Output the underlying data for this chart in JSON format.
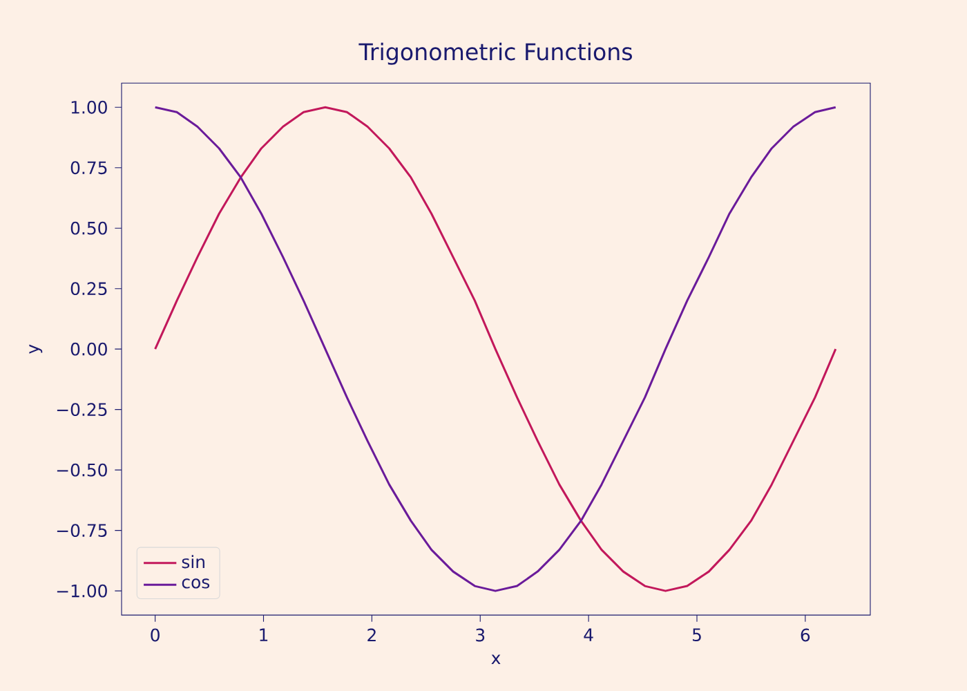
{
  "chart_data": {
    "type": "line",
    "title": "Trigonometric Functions",
    "xlabel": "x",
    "ylabel": "y",
    "x": [
      0,
      0.2,
      0.39,
      0.59,
      0.79,
      0.98,
      1.18,
      1.37,
      1.57,
      1.77,
      1.96,
      2.16,
      2.36,
      2.55,
      2.75,
      2.95,
      3.14,
      3.34,
      3.53,
      3.73,
      3.93,
      4.12,
      4.32,
      4.52,
      4.71,
      4.91,
      5.11,
      5.3,
      5.5,
      5.69,
      5.89,
      6.09,
      6.28
    ],
    "series": [
      {
        "name": "sin",
        "color": "#c2185b",
        "values": [
          0,
          0.2,
          0.38,
          0.56,
          0.71,
          0.83,
          0.92,
          0.98,
          1,
          0.98,
          0.92,
          0.83,
          0.71,
          0.56,
          0.38,
          0.2,
          0,
          -0.2,
          -0.38,
          -0.56,
          -0.71,
          -0.83,
          -0.92,
          -0.98,
          -1,
          -0.98,
          -0.92,
          -0.83,
          -0.71,
          -0.56,
          -0.38,
          -0.2,
          0
        ]
      },
      {
        "name": "cos",
        "color": "#6a1b9a",
        "values": [
          1,
          0.98,
          0.92,
          0.83,
          0.71,
          0.56,
          0.38,
          0.2,
          0,
          -0.2,
          -0.38,
          -0.56,
          -0.71,
          -0.83,
          -0.92,
          -0.98,
          -1,
          -0.98,
          -0.92,
          -0.83,
          -0.71,
          -0.56,
          -0.38,
          -0.2,
          0,
          0.2,
          0.38,
          0.56,
          0.71,
          0.83,
          0.92,
          0.98,
          1
        ]
      }
    ],
    "xlim": [
      -0.31,
      6.6
    ],
    "ylim": [
      -1.1,
      1.1
    ],
    "xticks": [
      0,
      1,
      2,
      3,
      4,
      5,
      6
    ],
    "yticks": [
      {
        "value": -1,
        "label": "−1.00"
      },
      {
        "value": -0.75,
        "label": "−0.75"
      },
      {
        "value": -0.5,
        "label": "−0.50"
      },
      {
        "value": -0.25,
        "label": "−0.25"
      },
      {
        "value": 0,
        "label": "0.00"
      },
      {
        "value": 0.25,
        "label": "0.25"
      },
      {
        "value": 0.5,
        "label": "0.50"
      },
      {
        "value": 0.75,
        "label": "0.75"
      },
      {
        "value": 1,
        "label": "1.00"
      }
    ],
    "grid": false,
    "legend": "bottom left",
    "marker": "none",
    "line_style": "solid"
  }
}
